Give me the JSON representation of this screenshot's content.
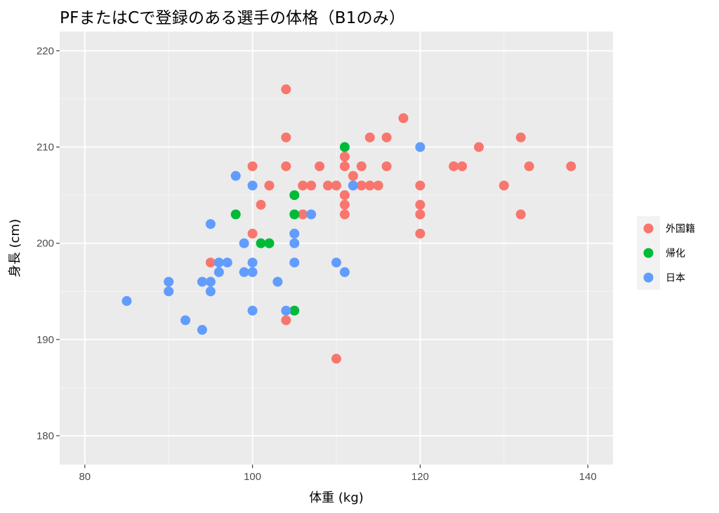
{
  "chart_data": {
    "type": "scatter",
    "title": "PFまたはCで登録のある選手の体格（B1のみ）",
    "xlabel": "体重 (kg)",
    "ylabel": "身長 (cm)",
    "xlim": [
      77,
      143
    ],
    "ylim": [
      177,
      222
    ],
    "xticks": [
      80,
      100,
      120,
      140
    ],
    "yticks": [
      180,
      190,
      200,
      210,
      220
    ],
    "grid": true,
    "legend_position": "right",
    "series": [
      {
        "name": "外国籍",
        "color": "#F8766D",
        "points": [
          [
            104,
            216
          ],
          [
            118,
            213
          ],
          [
            104,
            211
          ],
          [
            114,
            211
          ],
          [
            116,
            211
          ],
          [
            132,
            211
          ],
          [
            111,
            209
          ],
          [
            100,
            208
          ],
          [
            104,
            208
          ],
          [
            108,
            208
          ],
          [
            111,
            208
          ],
          [
            113,
            208
          ],
          [
            116,
            208
          ],
          [
            124,
            208
          ],
          [
            125,
            208
          ],
          [
            133,
            208
          ],
          [
            138,
            208
          ],
          [
            127,
            210
          ],
          [
            112,
            207
          ],
          [
            102,
            206
          ],
          [
            106,
            206
          ],
          [
            107,
            206
          ],
          [
            109,
            206
          ],
          [
            110,
            206
          ],
          [
            113,
            206
          ],
          [
            114,
            206
          ],
          [
            115,
            206
          ],
          [
            120,
            206
          ],
          [
            130,
            206
          ],
          [
            111,
            205
          ],
          [
            101,
            204
          ],
          [
            111,
            204
          ],
          [
            120,
            204
          ],
          [
            106,
            203
          ],
          [
            111,
            203
          ],
          [
            120,
            203
          ],
          [
            132,
            203
          ],
          [
            100,
            201
          ],
          [
            120,
            201
          ],
          [
            95,
            198
          ],
          [
            104,
            192
          ],
          [
            110,
            188
          ]
        ]
      },
      {
        "name": "帰化",
        "color": "#00BA38",
        "points": [
          [
            111,
            210
          ],
          [
            105,
            205
          ],
          [
            98,
            203
          ],
          [
            105,
            203
          ],
          [
            101,
            200
          ],
          [
            102,
            200
          ],
          [
            105,
            193
          ]
        ]
      },
      {
        "name": "日本",
        "color": "#619CFF",
        "points": [
          [
            120,
            210
          ],
          [
            98,
            207
          ],
          [
            100,
            206
          ],
          [
            112,
            206
          ],
          [
            95,
            202
          ],
          [
            107,
            203
          ],
          [
            105,
            201
          ],
          [
            99,
            200
          ],
          [
            105,
            200
          ],
          [
            96,
            198
          ],
          [
            97,
            198
          ],
          [
            100,
            198
          ],
          [
            105,
            198
          ],
          [
            110,
            198
          ],
          [
            96,
            197
          ],
          [
            99,
            197
          ],
          [
            100,
            197
          ],
          [
            111,
            197
          ],
          [
            90,
            196
          ],
          [
            94,
            196
          ],
          [
            95,
            196
          ],
          [
            103,
            196
          ],
          [
            90,
            195
          ],
          [
            95,
            195
          ],
          [
            85,
            194
          ],
          [
            100,
            193
          ],
          [
            104,
            193
          ],
          [
            92,
            192
          ],
          [
            94,
            191
          ]
        ]
      }
    ]
  }
}
